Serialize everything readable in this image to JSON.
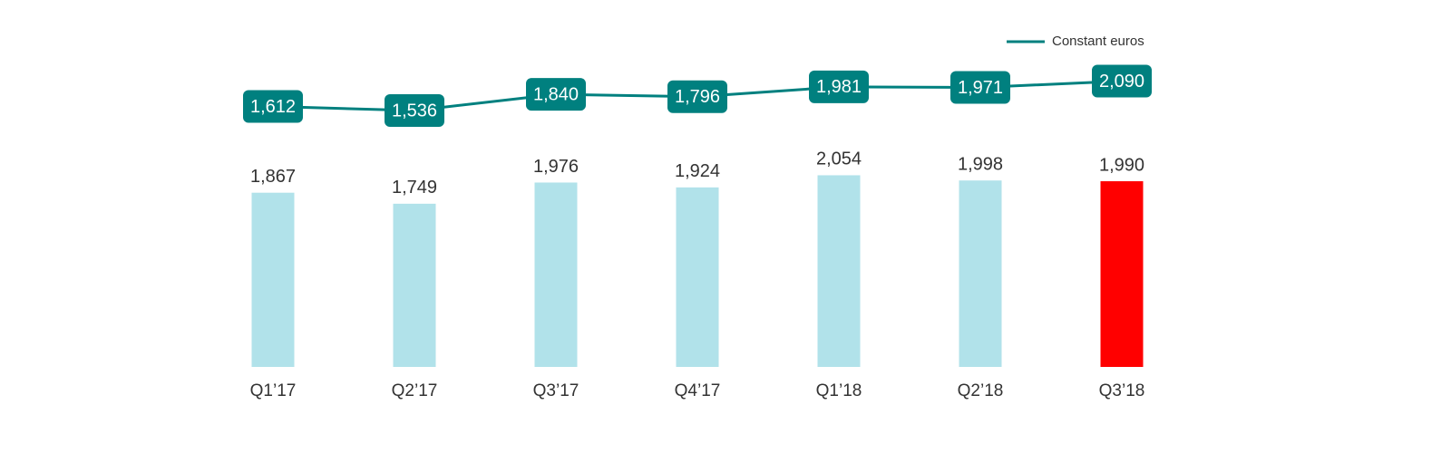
{
  "chart_data": {
    "type": "bar",
    "categories": [
      "Q1’17",
      "Q2’17",
      "Q3’17",
      "Q4’17",
      "Q1’18",
      "Q2’18",
      "Q3’18"
    ],
    "series": [
      {
        "type": "bar",
        "colors": [
          "#b1e2ea",
          "#b1e2ea",
          "#b1e2ea",
          "#b1e2ea",
          "#b1e2ea",
          "#b1e2ea",
          "#ff0000"
        ],
        "values": [
          1867,
          1749,
          1976,
          1924,
          2054,
          1998,
          1990
        ],
        "value_labels": [
          "1,867",
          "1,749",
          "1,976",
          "1,924",
          "2,054",
          "1,998",
          "1,990"
        ]
      },
      {
        "type": "line",
        "name": "Constant euros",
        "color": "#00807f",
        "values": [
          1612,
          1536,
          1840,
          1796,
          1981,
          1971,
          2090
        ],
        "value_labels": [
          "1,612",
          "1,536",
          "1,840",
          "1,796",
          "1,981",
          "1,971",
          "2,090"
        ]
      }
    ],
    "legend": "top-right"
  }
}
